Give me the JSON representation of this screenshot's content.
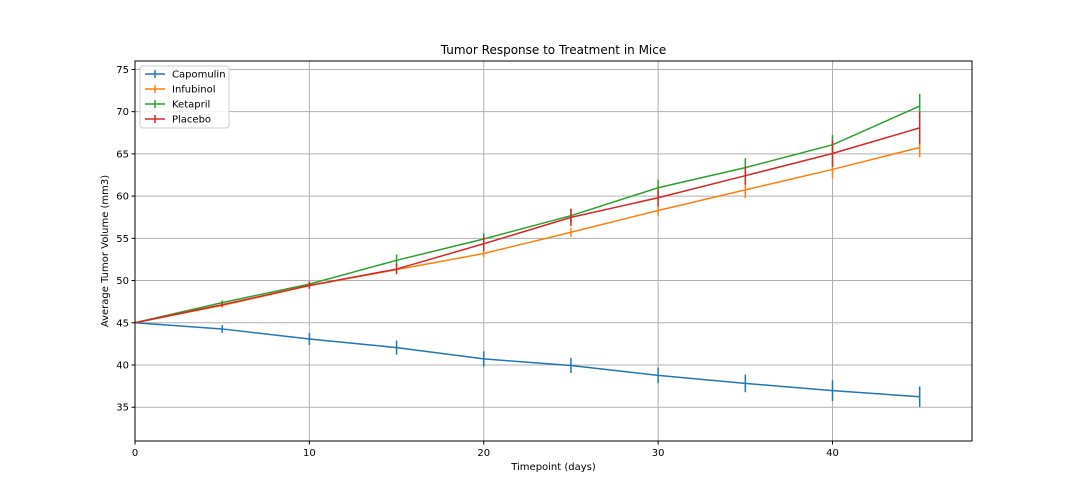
{
  "chart_data": {
    "type": "line",
    "title": "Tumor Response to Treatment in Mice",
    "xlabel": "Timepoint (days)",
    "ylabel": "Average Tumor Volume (mm3)",
    "xlim": [
      0,
      48
    ],
    "ylim": [
      31,
      76
    ],
    "xticks": [
      0,
      10,
      20,
      30,
      40
    ],
    "yticks": [
      35,
      40,
      45,
      50,
      55,
      60,
      65,
      70,
      75
    ],
    "grid": true,
    "legend_position": "top-left",
    "x": [
      0,
      5,
      10,
      15,
      20,
      25,
      30,
      35,
      40,
      45
    ],
    "series": [
      {
        "name": "Capomulin",
        "color": "#1f77b4",
        "values": [
          45.0,
          44.27,
          43.08,
          42.06,
          40.72,
          39.94,
          38.77,
          37.82,
          36.96,
          36.24
        ],
        "errors": [
          0,
          0.45,
          0.7,
          0.84,
          0.91,
          0.89,
          0.93,
          1.05,
          1.22,
          1.22
        ]
      },
      {
        "name": "Infubinol",
        "color": "#ff7f0e",
        "values": [
          45.0,
          47.06,
          49.4,
          51.3,
          53.2,
          55.72,
          58.3,
          60.74,
          63.16,
          65.76
        ],
        "errors": [
          0,
          0.24,
          0.28,
          0.36,
          0.44,
          0.55,
          0.63,
          0.98,
          1.06,
          1.14
        ]
      },
      {
        "name": "Ketapril",
        "color": "#2ca02c",
        "values": [
          45.0,
          47.39,
          49.58,
          52.4,
          54.92,
          57.68,
          60.99,
          63.37,
          66.07,
          70.66
        ],
        "errors": [
          0,
          0.26,
          0.36,
          0.68,
          0.66,
          0.83,
          0.94,
          1.13,
          1.16,
          1.45
        ]
      },
      {
        "name": "Placebo",
        "color": "#d62728",
        "values": [
          45.0,
          47.13,
          49.42,
          51.36,
          54.36,
          57.48,
          59.81,
          62.42,
          65.05,
          68.08
        ],
        "errors": [
          0,
          0.22,
          0.4,
          0.61,
          0.84,
          1.03,
          1.02,
          1.09,
          1.56,
          1.89
        ]
      }
    ]
  }
}
